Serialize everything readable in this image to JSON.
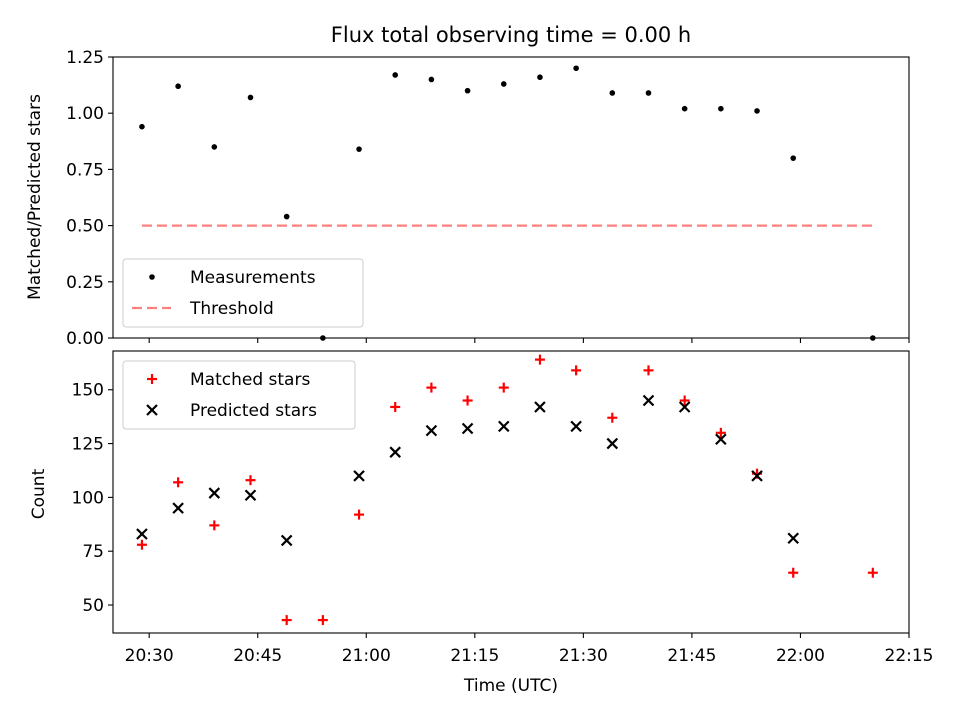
{
  "chart_data": [
    {
      "type": "scatter",
      "title": "Flux total observing time = 0.00 h",
      "xlabel": "",
      "ylabel": "Matched/Predicted stars",
      "ylim": [
        0,
        1.25
      ],
      "yticks": [
        "0.00",
        "0.25",
        "0.50",
        "0.75",
        "1.00",
        "1.25"
      ],
      "xlim": [
        "20:25",
        "22:15"
      ],
      "legend": "lower-left",
      "series": [
        {
          "name": "Measurements",
          "marker": "dot",
          "color": "#000000",
          "x": [
            "20:29",
            "20:34",
            "20:39",
            "20:44",
            "20:49",
            "20:54",
            "20:59",
            "21:04",
            "21:09",
            "21:14",
            "21:19",
            "21:24",
            "21:29",
            "21:34",
            "21:39",
            "21:44",
            "21:49",
            "21:54",
            "21:59",
            "22:10"
          ],
          "y": [
            0.94,
            1.12,
            0.85,
            1.07,
            0.54,
            0.0,
            0.84,
            1.17,
            1.15,
            1.1,
            1.13,
            1.16,
            1.2,
            1.09,
            1.09,
            1.02,
            1.02,
            1.01,
            0.8,
            0.0
          ]
        },
        {
          "name": "Threshold",
          "style": "dashed-line",
          "color": "#ff7f7f",
          "x": [
            "20:29",
            "22:10"
          ],
          "y": [
            0.5,
            0.5
          ]
        }
      ]
    },
    {
      "type": "scatter",
      "title": "",
      "xlabel": "Time (UTC)",
      "ylabel": "Count",
      "ylim": [
        37,
        168
      ],
      "yticks": [
        "50",
        "75",
        "100",
        "125",
        "150"
      ],
      "xlim": [
        "20:25",
        "22:15"
      ],
      "xticks": [
        "20:30",
        "20:45",
        "21:00",
        "21:15",
        "21:30",
        "21:45",
        "22:00",
        "22:15"
      ],
      "legend": "upper-left",
      "series": [
        {
          "name": "Matched stars",
          "marker": "plus",
          "color": "#ff0000",
          "x": [
            "20:29",
            "20:34",
            "20:39",
            "20:44",
            "20:49",
            "20:54",
            "20:59",
            "21:04",
            "21:09",
            "21:14",
            "21:19",
            "21:24",
            "21:29",
            "21:34",
            "21:39",
            "21:44",
            "21:49",
            "21:54",
            "21:59",
            "22:10"
          ],
          "y": [
            78,
            107,
            87,
            108,
            43,
            43,
            92,
            142,
            151,
            145,
            151,
            164,
            159,
            137,
            159,
            145,
            130,
            111,
            65,
            65
          ]
        },
        {
          "name": "Predicted stars",
          "marker": "x",
          "color": "#000000",
          "x": [
            "20:29",
            "20:34",
            "20:39",
            "20:44",
            "20:49",
            "20:59",
            "21:04",
            "21:09",
            "21:14",
            "21:19",
            "21:24",
            "21:29",
            "21:34",
            "21:39",
            "21:44",
            "21:49",
            "21:54",
            "21:59"
          ],
          "y": [
            83,
            95,
            102,
            101,
            80,
            110,
            121,
            131,
            132,
            133,
            142,
            133,
            125,
            145,
            142,
            127,
            110,
            81
          ]
        }
      ]
    }
  ]
}
